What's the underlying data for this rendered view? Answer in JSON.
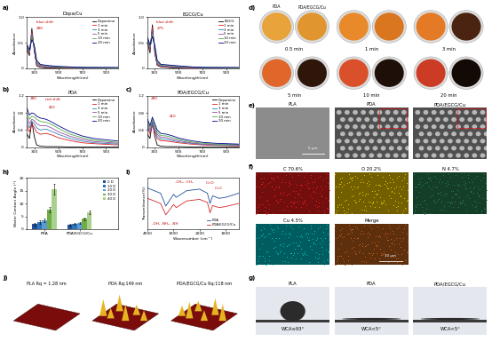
{
  "chart_data": [
    {
      "type": "line",
      "title": "Dopa/Cu",
      "x_label": "Wavelength(nm)",
      "y_label": "Absorbance",
      "x": [
        240,
        260,
        280,
        300,
        320,
        350,
        400,
        450,
        500,
        600,
        700,
        800,
        1000
      ],
      "xlim": [
        240,
        1000
      ],
      "xticks": [
        300,
        500,
        700,
        900
      ],
      "ylim": [
        0,
        1.0
      ],
      "yticks": [
        0,
        0.5,
        1.0
      ],
      "legend": "upper right",
      "annotations": [
        "blue shift",
        "280"
      ],
      "series": [
        {
          "name": "Dopamine",
          "color": "#000000",
          "values": [
            0.35,
            0.25,
            0.78,
            0.35,
            0.05,
            0.02,
            0.01,
            0.01,
            0.01,
            0,
            0,
            0,
            0
          ]
        },
        {
          "name": "1 min",
          "color": "#e41a1c",
          "values": [
            0.38,
            0.28,
            0.72,
            0.38,
            0.08,
            0.04,
            0.02,
            0.02,
            0.02,
            0.01,
            0.01,
            0.01,
            0.01
          ]
        },
        {
          "name": "3 min",
          "color": "#377eb8",
          "values": [
            0.4,
            0.3,
            0.68,
            0.4,
            0.1,
            0.05,
            0.03,
            0.03,
            0.02,
            0.02,
            0.01,
            0.01,
            0.01
          ]
        },
        {
          "name": "5 min",
          "color": "#984ea3",
          "values": [
            0.42,
            0.32,
            0.64,
            0.42,
            0.12,
            0.06,
            0.04,
            0.03,
            0.03,
            0.02,
            0.02,
            0.01,
            0.01
          ]
        },
        {
          "name": "10 min",
          "color": "#4daf4a",
          "values": [
            0.44,
            0.34,
            0.6,
            0.44,
            0.14,
            0.07,
            0.05,
            0.04,
            0.03,
            0.02,
            0.02,
            0.02,
            0.01
          ]
        },
        {
          "name": "20 min",
          "color": "#00008b",
          "values": [
            0.46,
            0.36,
            0.56,
            0.46,
            0.16,
            0.08,
            0.06,
            0.05,
            0.04,
            0.03,
            0.02,
            0.02,
            0.02
          ]
        }
      ]
    },
    {
      "type": "line",
      "title": "EGCG/Cu",
      "x_label": "Wavelength(nm)",
      "y_label": "Absorbance",
      "x": [
        240,
        260,
        280,
        300,
        320,
        350,
        400,
        450,
        500,
        600,
        700,
        800,
        1000
      ],
      "xlim": [
        240,
        1000
      ],
      "xticks": [
        300,
        500,
        700,
        900
      ],
      "ylim": [
        0,
        1.0
      ],
      "yticks": [
        0,
        0.5,
        1.0
      ],
      "legend": "upper right",
      "annotations": [
        "blue shift",
        "275"
      ],
      "series": [
        {
          "name": "EGCG",
          "color": "#000000",
          "values": [
            0.5,
            0.3,
            0.85,
            0.3,
            0.06,
            0.03,
            0.02,
            0.01,
            0.01,
            0,
            0,
            0,
            0
          ]
        },
        {
          "name": "1 min",
          "color": "#e41a1c",
          "values": [
            0.52,
            0.34,
            0.8,
            0.34,
            0.08,
            0.04,
            0.03,
            0.02,
            0.02,
            0.01,
            0.01,
            0.01,
            0.01
          ]
        },
        {
          "name": "3 min",
          "color": "#377eb8",
          "values": [
            0.54,
            0.37,
            0.75,
            0.37,
            0.1,
            0.05,
            0.04,
            0.03,
            0.02,
            0.02,
            0.01,
            0.01,
            0.01
          ]
        },
        {
          "name": "5 min",
          "color": "#984ea3",
          "values": [
            0.56,
            0.4,
            0.7,
            0.4,
            0.12,
            0.06,
            0.05,
            0.04,
            0.03,
            0.02,
            0.02,
            0.01,
            0.01
          ]
        },
        {
          "name": "10 min",
          "color": "#4daf4a",
          "values": [
            0.58,
            0.43,
            0.66,
            0.43,
            0.14,
            0.07,
            0.06,
            0.05,
            0.04,
            0.03,
            0.02,
            0.02,
            0.01
          ]
        },
        {
          "name": "20 min",
          "color": "#00008b",
          "values": [
            0.6,
            0.46,
            0.62,
            0.46,
            0.16,
            0.08,
            0.07,
            0.06,
            0.05,
            0.03,
            0.02,
            0.02,
            0.02
          ]
        }
      ]
    },
    {
      "type": "line",
      "title": "PDA",
      "x_label": "Wavelength(nm)",
      "y_label": "Absorbance",
      "x": [
        240,
        260,
        280,
        300,
        320,
        350,
        400,
        450,
        500,
        600,
        700,
        800,
        1000
      ],
      "xlim": [
        240,
        1000
      ],
      "xticks": [
        300,
        500,
        700,
        900
      ],
      "ylim": [
        0,
        1.2
      ],
      "yticks": [
        0,
        0.4,
        0.8,
        1.2
      ],
      "legend": "upper right",
      "annotations": [
        "red shift",
        "280",
        "410"
      ],
      "series": [
        {
          "name": "Dopamine",
          "color": "#000000",
          "values": [
            0.3,
            0.2,
            0.6,
            0.25,
            0.05,
            0.02,
            0.01,
            0.01,
            0.01,
            0,
            0,
            0,
            0
          ]
        },
        {
          "name": "1 min",
          "color": "#e41a1c",
          "values": [
            0.5,
            0.35,
            0.55,
            0.45,
            0.35,
            0.3,
            0.32,
            0.28,
            0.22,
            0.15,
            0.1,
            0.08,
            0.05
          ]
        },
        {
          "name": "3 min",
          "color": "#377eb8",
          "values": [
            0.6,
            0.45,
            0.6,
            0.55,
            0.45,
            0.4,
            0.42,
            0.36,
            0.3,
            0.2,
            0.14,
            0.1,
            0.07
          ]
        },
        {
          "name": "5 min",
          "color": "#984ea3",
          "values": [
            0.7,
            0.55,
            0.65,
            0.62,
            0.55,
            0.5,
            0.5,
            0.44,
            0.36,
            0.25,
            0.18,
            0.13,
            0.09
          ]
        },
        {
          "name": "10 min",
          "color": "#4daf4a",
          "values": [
            0.8,
            0.65,
            0.72,
            0.7,
            0.65,
            0.6,
            0.58,
            0.52,
            0.44,
            0.3,
            0.22,
            0.16,
            0.11
          ]
        },
        {
          "name": "20 min",
          "color": "#00008b",
          "values": [
            0.9,
            0.75,
            0.8,
            0.78,
            0.72,
            0.68,
            0.65,
            0.58,
            0.5,
            0.36,
            0.26,
            0.2,
            0.14
          ]
        }
      ]
    },
    {
      "type": "line",
      "title": "PDA/EGCG/Cu",
      "x_label": "Wavelength(nm)",
      "y_label": "Absorbance",
      "x": [
        240,
        260,
        280,
        300,
        320,
        350,
        400,
        450,
        500,
        600,
        700,
        800,
        1000
      ],
      "xlim": [
        240,
        1000
      ],
      "xticks": [
        300,
        500,
        700,
        900
      ],
      "ylim": [
        0,
        1.2
      ],
      "yticks": [
        0,
        0.4,
        0.8,
        1.2
      ],
      "legend": "upper right",
      "annotations": [
        "280",
        "410"
      ],
      "series": [
        {
          "name": "Dopamine",
          "color": "#000000",
          "values": [
            0.3,
            0.2,
            0.6,
            0.25,
            0.05,
            0.02,
            0.01,
            0.01,
            0.01,
            0,
            0,
            0,
            0
          ]
        },
        {
          "name": "1 min",
          "color": "#e41a1c",
          "values": [
            0.45,
            0.3,
            0.5,
            0.35,
            0.2,
            0.15,
            0.14,
            0.12,
            0.1,
            0.07,
            0.05,
            0.04,
            0.03
          ]
        },
        {
          "name": "3 min",
          "color": "#377eb8",
          "values": [
            0.5,
            0.35,
            0.55,
            0.4,
            0.25,
            0.19,
            0.18,
            0.15,
            0.12,
            0.09,
            0.06,
            0.05,
            0.04
          ]
        },
        {
          "name": "5 min",
          "color": "#984ea3",
          "values": [
            0.55,
            0.4,
            0.6,
            0.45,
            0.3,
            0.23,
            0.22,
            0.18,
            0.15,
            0.1,
            0.07,
            0.06,
            0.05
          ]
        },
        {
          "name": "10 min",
          "color": "#4daf4a",
          "values": [
            0.6,
            0.45,
            0.65,
            0.5,
            0.35,
            0.27,
            0.26,
            0.22,
            0.18,
            0.12,
            0.09,
            0.07,
            0.06
          ]
        },
        {
          "name": "20 min",
          "color": "#00008b",
          "values": [
            0.65,
            0.5,
            0.7,
            0.55,
            0.4,
            0.32,
            0.3,
            0.26,
            0.21,
            0.15,
            0.11,
            0.09,
            0.07
          ]
        }
      ]
    },
    {
      "type": "bar",
      "y_label": "Water Contact Angle (°)",
      "categories": [
        "PDA",
        "PDA/EGCG/Cu"
      ],
      "ylim": [
        0,
        20
      ],
      "yticks": [
        0,
        5,
        10,
        15,
        20
      ],
      "legend": "upper right",
      "series": [
        {
          "name": "0 D",
          "color": "#1f4e9c",
          "values": [
            2.0,
            1.8
          ],
          "errors": [
            0.5,
            0.3
          ]
        },
        {
          "name": "10 D",
          "color": "#2e75b6",
          "values": [
            2.8,
            2.0
          ],
          "errors": [
            0.6,
            0.3
          ]
        },
        {
          "name": "20 D",
          "color": "#5b9bd5",
          "values": [
            3.5,
            2.5
          ],
          "errors": [
            0.7,
            0.4
          ]
        },
        {
          "name": "30 D",
          "color": "#70ad47",
          "values": [
            7.5,
            4.0
          ],
          "errors": [
            1.0,
            0.6
          ]
        },
        {
          "name": "40 D",
          "color": "#a9d18e",
          "values": [
            15.5,
            6.5
          ],
          "errors": [
            2.0,
            0.8
          ]
        }
      ]
    },
    {
      "type": "line",
      "x_label": "Wavenumber (cm⁻¹)",
      "y_label": "Transmittance(%)",
      "x": [
        4000,
        3500,
        3300,
        3000,
        2900,
        2500,
        2000,
        1700,
        1600,
        1500,
        1250,
        1000,
        500
      ],
      "xlim": [
        4000,
        500
      ],
      "xticks": [
        4000,
        3000,
        2000,
        1000
      ],
      "ylim": [
        0,
        100
      ],
      "tick_labels": "x",
      "legend": "lower right",
      "annotations": [
        "-OH, -NH₂, -NH",
        "-CH₂, -CH₃",
        "C=O",
        "C=C"
      ],
      "series": [
        {
          "name": "PDA",
          "color": "#1f4e9c",
          "values": [
            80,
            70,
            45,
            68,
            62,
            75,
            78,
            70,
            50,
            65,
            60,
            62,
            70
          ]
        },
        {
          "name": "PDA/EGCG/Cu",
          "color": "#d62728",
          "values": [
            60,
            50,
            28,
            48,
            42,
            55,
            58,
            52,
            32,
            46,
            42,
            44,
            50
          ]
        }
      ]
    }
  ],
  "panel_labels": [
    "a)",
    "b)",
    "c)",
    "d)",
    "e)",
    "f)",
    "g)",
    "h)",
    "i)",
    "j)"
  ],
  "photos": {
    "headers": [
      "PDA",
      "PDA/EGCG/Cu"
    ],
    "times": [
      {
        "label": "0.5 min",
        "colors": [
          "#e8a33a",
          "#e0952e"
        ]
      },
      {
        "label": "1 min",
        "colors": [
          "#e98a2a",
          "#d9761f"
        ]
      },
      {
        "label": "3 min",
        "colors": [
          "#e57a26",
          "#4a2410"
        ]
      },
      {
        "label": "5 min",
        "colors": [
          "#e0662a",
          "#2e160b"
        ]
      },
      {
        "label": "10 min",
        "colors": [
          "#d9502a",
          "#1e0f08"
        ]
      },
      {
        "label": "20 min",
        "colors": [
          "#cc3b24",
          "#140a05"
        ]
      }
    ]
  },
  "sem": {
    "images": [
      "PLA",
      "PDA",
      "PDA/EGCG/Cu"
    ],
    "scale_bar": "5 μm"
  },
  "eds": {
    "maps": [
      {
        "label": "C 70.6%",
        "color": "#ff2020"
      },
      {
        "label": "O 20.2%",
        "color": "#ffd700"
      },
      {
        "label": "N 4.7%",
        "color": "#2e8b57"
      },
      {
        "label": "Cu 4.5%",
        "color": "#00ced1"
      },
      {
        "label": "Merge",
        "color": "#d2691e"
      }
    ],
    "scale_bar": "10 μm"
  },
  "wca": [
    {
      "label": "PLA",
      "text": "WCA≈93°"
    },
    {
      "label": "PDA",
      "text": "WCA<5°"
    },
    {
      "label": "PDA/EGCG/Cu",
      "text": "WCA<5°"
    }
  ],
  "afm": [
    "PLA Rq = 1.28 nm",
    "PDA Rq:149 nm",
    "PDA/EGCG/Cu Rq:118 nm"
  ]
}
